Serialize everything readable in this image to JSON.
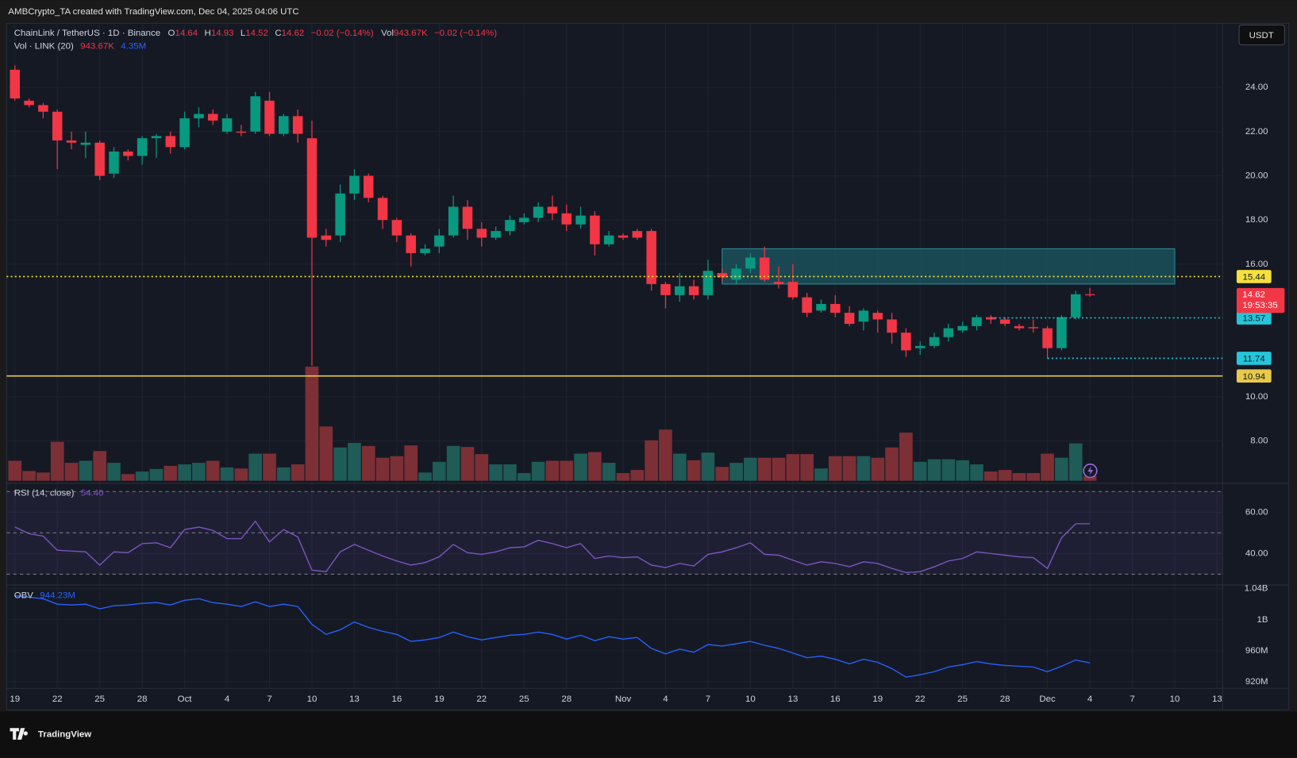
{
  "header": {
    "credit": "AMBCrypto_TA created with TradingView.com, Dec 04, 2025 04:06 UTC"
  },
  "chart_data": [
    {
      "type": "candlestick",
      "legend": {
        "symbol": "ChainLink / TetherUS · 1D · Binance",
        "items": [
          {
            "key": "O",
            "value": "14.64"
          },
          {
            "key": "H",
            "value": "14.93"
          },
          {
            "key": "L",
            "value": "14.52"
          },
          {
            "key": "C",
            "value": "14.62"
          }
        ],
        "change": "−0.02 (−0.14%)",
        "volume_key": "Vol",
        "volume": "943.67K",
        "volume_change": "−0.02 (−0.14%)"
      },
      "currency": "USDT",
      "categories": [
        "19",
        null,
        null,
        "22",
        null,
        null,
        "25",
        null,
        null,
        "28",
        null,
        null,
        "Oct",
        null,
        null,
        "4",
        null,
        null,
        "7",
        null,
        null,
        "10",
        null,
        null,
        "13",
        null,
        null,
        "16",
        null,
        null,
        "19",
        null,
        null,
        "22",
        null,
        null,
        "25",
        null,
        null,
        "28",
        null,
        null,
        null,
        "Nov",
        null,
        null,
        "4",
        null,
        null,
        "7",
        null,
        null,
        "10",
        null,
        null,
        "13",
        null,
        null,
        "16",
        null,
        null,
        "19",
        null,
        null,
        "22",
        null,
        null,
        "25",
        null,
        null,
        "28",
        null,
        null,
        "Dec",
        null,
        null,
        "4",
        null,
        null,
        "7",
        null,
        null,
        "10",
        null,
        null,
        "13"
      ],
      "open": [
        24.8,
        23.4,
        23.2,
        22.9,
        21.6,
        21.4,
        21.5,
        20.1,
        21.1,
        20.9,
        21.7,
        21.8,
        21.3,
        22.6,
        22.8,
        22.0,
        22.0,
        22.0,
        23.4,
        21.9,
        22.7,
        21.7,
        17.3,
        17.3,
        19.2,
        20.0,
        19.0,
        18.0,
        17.3,
        16.5,
        16.8,
        17.3,
        18.6,
        17.6,
        17.2,
        17.5,
        17.9,
        18.1,
        18.6,
        18.3,
        17.8,
        18.2,
        16.9,
        17.3,
        17.5,
        17.5,
        15.1,
        14.6,
        15.0,
        14.6,
        15.6,
        15.3,
        15.8,
        16.3,
        15.2,
        15.2,
        14.5,
        13.9,
        14.2,
        13.8,
        13.4,
        13.8,
        13.5,
        12.9,
        12.2,
        12.3,
        12.7,
        13.0,
        13.2,
        13.6,
        13.5,
        13.2,
        13.15,
        13.1,
        12.2,
        13.6,
        14.64,
        null,
        null,
        null,
        null,
        null,
        null,
        null,
        null,
        null
      ],
      "high": [
        25.0,
        23.5,
        23.3,
        23.0,
        22.0,
        22.0,
        21.6,
        21.3,
        21.2,
        21.8,
        21.9,
        22.0,
        22.9,
        23.1,
        23.0,
        22.8,
        22.3,
        23.8,
        23.8,
        22.8,
        23.0,
        22.5,
        17.6,
        19.6,
        20.3,
        20.1,
        19.1,
        18.1,
        17.4,
        16.9,
        17.6,
        19.1,
        18.9,
        17.9,
        17.7,
        18.2,
        18.3,
        18.8,
        19.1,
        18.7,
        18.6,
        18.4,
        17.5,
        17.4,
        17.6,
        17.6,
        15.2,
        15.6,
        15.3,
        16.2,
        15.8,
        16.0,
        16.5,
        16.8,
        15.9,
        16.0,
        14.7,
        14.4,
        14.6,
        14.1,
        14.0,
        13.9,
        13.8,
        13.1,
        12.5,
        12.9,
        13.3,
        13.4,
        13.7,
        13.7,
        13.6,
        13.3,
        13.5,
        13.2,
        13.7,
        14.8,
        14.93,
        null,
        null,
        null,
        null,
        null,
        null,
        null,
        null,
        null
      ],
      "low": [
        23.4,
        23.1,
        22.6,
        20.3,
        21.2,
        20.8,
        19.8,
        19.9,
        20.7,
        20.5,
        20.8,
        21.0,
        21.2,
        22.2,
        22.3,
        21.9,
        21.8,
        21.9,
        21.8,
        21.8,
        21.5,
        11.4,
        16.8,
        17.0,
        18.9,
        18.8,
        17.6,
        17.0,
        15.9,
        16.4,
        16.5,
        17.2,
        17.1,
        16.8,
        17.1,
        17.3,
        17.8,
        17.9,
        18.0,
        17.5,
        17.6,
        16.4,
        16.8,
        17.1,
        17.1,
        14.8,
        14.0,
        14.3,
        14.4,
        14.4,
        15.2,
        15.1,
        15.6,
        15.2,
        14.9,
        14.4,
        13.6,
        13.8,
        13.6,
        13.2,
        13.0,
        12.9,
        12.4,
        11.8,
        11.9,
        12.2,
        12.5,
        12.9,
        13.0,
        13.3,
        13.2,
        13.0,
        12.9,
        11.74,
        12.1,
        13.5,
        14.52,
        null,
        null,
        null,
        null,
        null,
        null,
        null,
        null,
        null
      ],
      "close": [
        23.5,
        23.2,
        22.9,
        21.6,
        21.5,
        21.5,
        20.0,
        21.1,
        20.9,
        21.7,
        21.8,
        21.3,
        22.6,
        22.8,
        22.5,
        22.6,
        21.95,
        23.6,
        21.9,
        22.7,
        21.9,
        17.2,
        17.1,
        19.2,
        20.0,
        19.0,
        18.0,
        17.3,
        16.5,
        16.7,
        17.3,
        18.6,
        17.6,
        17.2,
        17.5,
        18.0,
        18.1,
        18.6,
        18.3,
        17.8,
        18.2,
        16.9,
        17.3,
        17.2,
        17.2,
        15.1,
        14.6,
        15.0,
        14.6,
        15.7,
        15.4,
        15.8,
        16.3,
        15.3,
        15.1,
        14.5,
        13.8,
        14.2,
        13.8,
        13.3,
        13.9,
        13.5,
        12.9,
        12.1,
        12.3,
        12.7,
        13.1,
        13.2,
        13.6,
        13.5,
        13.3,
        13.1,
        13.1,
        12.2,
        13.6,
        14.64,
        14.62,
        null,
        null,
        null,
        null,
        null,
        null,
        null,
        null,
        null
      ],
      "up_color": "#089981",
      "down_color": "#f23645",
      "ylim": [
        6.2,
        26.9
      ],
      "yticks": [
        {
          "value": 24,
          "label": "24.00"
        },
        {
          "value": 22,
          "label": "22.00"
        },
        {
          "value": 20,
          "label": "20.00"
        },
        {
          "value": 18,
          "label": "18.00"
        },
        {
          "value": 16,
          "label": "16.00"
        },
        {
          "value": 10,
          "label": "10.00"
        },
        {
          "value": 8,
          "label": "8.00"
        }
      ],
      "grid": true,
      "zone": {
        "top": 16.7,
        "bottom": 15.1,
        "from": 50,
        "to": 82,
        "color": "#1b5c66"
      },
      "levels": [
        {
          "value": 15.44,
          "color": "#f5e13c",
          "style": "dotted"
        },
        {
          "value": 13.57,
          "color": "#26c6da",
          "style": "dotted",
          "from": 69
        },
        {
          "value": 11.74,
          "color": "#26c6da",
          "style": "dotted",
          "from": 73
        },
        {
          "value": 10.94,
          "color": "#e8c94a",
          "style": "solid"
        }
      ],
      "last_price": {
        "value": 14.62,
        "countdown": "19:53:35",
        "color": "#f23645"
      }
    },
    {
      "type": "bar",
      "title": "Vol · LINK (20)",
      "legend_values": [
        "943.67K",
        "4.35M"
      ],
      "values": [
        3.9,
        1.9,
        1.6,
        7.6,
        3.5,
        3.9,
        5.8,
        3.5,
        1.3,
        1.8,
        2.3,
        2.9,
        3.2,
        3.5,
        3.9,
        2.6,
        2.4,
        5.3,
        5.3,
        2.6,
        3.2,
        22.3,
        10.6,
        6.5,
        7.4,
        6.8,
        4.5,
        4.8,
        6.9,
        1.6,
        3.7,
        6.8,
        6.6,
        5.2,
        3.2,
        3.2,
        1.5,
        3.7,
        3.9,
        3.9,
        5.3,
        5.6,
        3.5,
        1.5,
        2.1,
        7.9,
        10.0,
        5.3,
        4.0,
        5.5,
        2.7,
        3.5,
        4.5,
        4.5,
        4.5,
        5.2,
        5.2,
        2.4,
        4.8,
        4.8,
        4.8,
        4.5,
        6.5,
        9.4,
        3.7,
        4.2,
        4.2,
        4.0,
        3.2,
        1.8,
        2.1,
        1.5,
        1.5,
        5.3,
        4.5,
        7.3,
        0.94367,
        null,
        null,
        null,
        null,
        null,
        null,
        null,
        null,
        null
      ],
      "up_color": "#1f5b57",
      "down_color": "#7d2f36"
    },
    {
      "type": "line",
      "title": "RSI (14; close)",
      "legend_value": "54.40",
      "color": "#7e57c2",
      "band_color": "#7e57c2",
      "values": [
        52.8,
        49.6,
        48.4,
        41.6,
        41.2,
        40.8,
        34.4,
        40.8,
        40.4,
        44.8,
        45.2,
        42.8,
        51.6,
        52.8,
        51.2,
        47.2,
        47.2,
        55.6,
        45.6,
        51.6,
        48,
        32,
        31.2,
        40.8,
        44.4,
        41.6,
        38.8,
        36.4,
        34.4,
        35.6,
        38.4,
        44.4,
        40.4,
        39.6,
        40.8,
        42.8,
        43.2,
        46.4,
        44.8,
        42.8,
        44.8,
        37.6,
        38.8,
        38,
        38.4,
        34.4,
        33.2,
        35.2,
        34,
        39.6,
        40.8,
        42.8,
        45.2,
        39.6,
        39.2,
        36.8,
        34.4,
        36,
        35.2,
        33.6,
        36,
        35.2,
        32.8,
        30.8,
        31.2,
        33.6,
        36.4,
        37.6,
        40.8,
        40,
        39.2,
        38.4,
        38,
        32.8,
        47.6,
        54.4,
        54.4,
        null,
        null,
        null,
        null,
        null,
        null,
        null,
        null,
        null
      ],
      "bands": [
        70,
        50,
        30
      ],
      "ylim": [
        25.2,
        72.8
      ],
      "yticks": [
        {
          "value": 60,
          "label": "60.00"
        },
        {
          "value": 40,
          "label": "40.00"
        }
      ]
    },
    {
      "type": "line",
      "title": "OBV",
      "legend_value": "944.23M",
      "color": "#2962ff",
      "values": [
        1031,
        1029,
        1027,
        1020,
        1019,
        1020,
        1014,
        1018,
        1019,
        1021,
        1022,
        1019,
        1025,
        1027,
        1022,
        1020,
        1017,
        1023,
        1017,
        1020,
        1017,
        994,
        981,
        987,
        997,
        990,
        985,
        981,
        972,
        974,
        977,
        984,
        978,
        974,
        977,
        980,
        981,
        984,
        981,
        975,
        980,
        973,
        978,
        975,
        977,
        963,
        956,
        962,
        958,
        968,
        966,
        969,
        972,
        967,
        963,
        957,
        951,
        953,
        949,
        943,
        949,
        945,
        937,
        926,
        929,
        933,
        939,
        942,
        946,
        943,
        941,
        940,
        939,
        933,
        940,
        948,
        944.23,
        null,
        null,
        null,
        null,
        null,
        null,
        null,
        null,
        null
      ],
      "ylim": [
        911.5,
        1043.7
      ],
      "yticks": [
        {
          "value": 1040,
          "label": "1.04B"
        },
        {
          "value": 1000,
          "label": "1B"
        },
        {
          "value": 960,
          "label": "960M"
        },
        {
          "value": 920,
          "label": "920M"
        }
      ]
    }
  ],
  "footer": {
    "logo": "TradingView"
  }
}
